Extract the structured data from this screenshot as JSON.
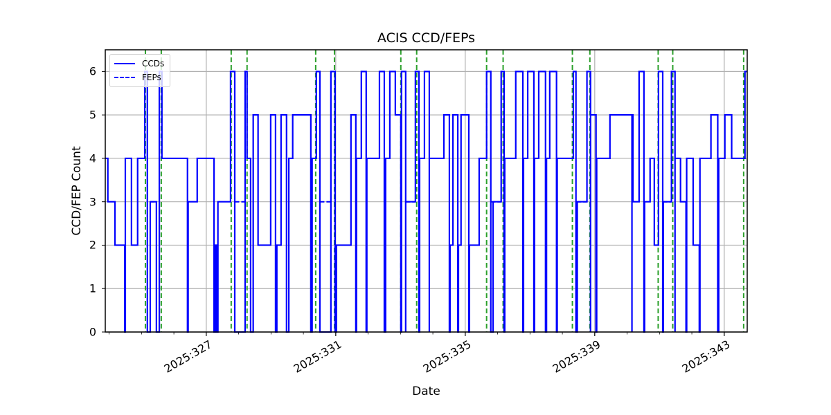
{
  "chart_data": {
    "type": "line",
    "title": "ACIS CCD/FEPs",
    "xlabel": "Date",
    "ylabel": "CCD/FEP Count",
    "xlim_day_of_year": [
      323.88,
      343.71
    ],
    "ylim": [
      0,
      6.5
    ],
    "grid": true,
    "legend_position": "upper left",
    "x_ticks": [
      {
        "day": 327,
        "label": "2025:327"
      },
      {
        "day": 331,
        "label": "2025:331"
      },
      {
        "day": 335,
        "label": "2025:335"
      },
      {
        "day": 339,
        "label": "2025:339"
      },
      {
        "day": 343,
        "label": "2025:343"
      }
    ],
    "y_ticks": [
      0,
      1,
      2,
      3,
      4,
      5,
      6
    ],
    "legend": [
      {
        "label": "CCDs",
        "style": "solid",
        "color": "#0000ff"
      },
      {
        "label": "FEPs",
        "style": "dashed",
        "color": "#0000ff"
      }
    ],
    "series": [
      {
        "name": "CCDs",
        "style": "steps-post",
        "color": "#0000ff",
        "points_day_value": [
          [
            323.88,
            4
          ],
          [
            323.96,
            3
          ],
          [
            324.18,
            2
          ],
          [
            324.48,
            0
          ],
          [
            324.5,
            4
          ],
          [
            324.69,
            2
          ],
          [
            324.88,
            4
          ],
          [
            325.1,
            6
          ],
          [
            325.18,
            0
          ],
          [
            325.27,
            3
          ],
          [
            325.46,
            0
          ],
          [
            325.55,
            6
          ],
          [
            325.63,
            4
          ],
          [
            326.42,
            0
          ],
          [
            326.44,
            3
          ],
          [
            326.72,
            4
          ],
          [
            327.24,
            0
          ],
          [
            327.28,
            2
          ],
          [
            327.32,
            0
          ],
          [
            327.36,
            3
          ],
          [
            327.75,
            6
          ],
          [
            327.88,
            0
          ],
          [
            328.2,
            6
          ],
          [
            328.26,
            4
          ],
          [
            328.37,
            0
          ],
          [
            328.45,
            5
          ],
          [
            328.6,
            2
          ],
          [
            328.99,
            5
          ],
          [
            329.14,
            0
          ],
          [
            329.18,
            2
          ],
          [
            329.31,
            5
          ],
          [
            329.48,
            0
          ],
          [
            329.55,
            4
          ],
          [
            329.67,
            5
          ],
          [
            330.23,
            0
          ],
          [
            330.27,
            4
          ],
          [
            330.4,
            6
          ],
          [
            330.51,
            0
          ],
          [
            330.85,
            6
          ],
          [
            330.98,
            0
          ],
          [
            331.02,
            2
          ],
          [
            331.47,
            5
          ],
          [
            331.62,
            0
          ],
          [
            331.64,
            4
          ],
          [
            331.79,
            6
          ],
          [
            331.94,
            0
          ],
          [
            331.96,
            4
          ],
          [
            332.35,
            6
          ],
          [
            332.5,
            0
          ],
          [
            332.54,
            4
          ],
          [
            332.67,
            6
          ],
          [
            332.84,
            5
          ],
          [
            333.01,
            0
          ],
          [
            333.03,
            6
          ],
          [
            333.16,
            0
          ],
          [
            333.16,
            3
          ],
          [
            333.46,
            6
          ],
          [
            333.57,
            0
          ],
          [
            333.59,
            4
          ],
          [
            333.74,
            6
          ],
          [
            333.89,
            0
          ],
          [
            333.89,
            4
          ],
          [
            334.34,
            5
          ],
          [
            334.51,
            0
          ],
          [
            334.53,
            2
          ],
          [
            334.62,
            5
          ],
          [
            334.77,
            0
          ],
          [
            334.79,
            2
          ],
          [
            334.87,
            5
          ],
          [
            335.11,
            0
          ],
          [
            335.13,
            2
          ],
          [
            335.43,
            4
          ],
          [
            335.66,
            6
          ],
          [
            335.79,
            0
          ],
          [
            335.86,
            3
          ],
          [
            336.11,
            6
          ],
          [
            336.2,
            0
          ],
          [
            336.22,
            4
          ],
          [
            336.56,
            6
          ],
          [
            336.78,
            0
          ],
          [
            336.8,
            4
          ],
          [
            336.93,
            6
          ],
          [
            337.12,
            0
          ],
          [
            337.14,
            4
          ],
          [
            337.27,
            6
          ],
          [
            337.48,
            0
          ],
          [
            337.51,
            4
          ],
          [
            337.61,
            6
          ],
          [
            337.82,
            0
          ],
          [
            337.84,
            4
          ],
          [
            338.34,
            6
          ],
          [
            338.42,
            0
          ],
          [
            338.46,
            3
          ],
          [
            338.76,
            6
          ],
          [
            338.87,
            0
          ],
          [
            338.87,
            5
          ],
          [
            339.04,
            0
          ],
          [
            339.06,
            4
          ],
          [
            339.47,
            5
          ],
          [
            340.15,
            0
          ],
          [
            340.15,
            5
          ],
          [
            340.18,
            3
          ],
          [
            340.37,
            6
          ],
          [
            340.52,
            0
          ],
          [
            340.54,
            3
          ],
          [
            340.71,
            4
          ],
          [
            340.84,
            2
          ],
          [
            340.97,
            6
          ],
          [
            341.1,
            0
          ],
          [
            341.12,
            3
          ],
          [
            341.37,
            6
          ],
          [
            341.48,
            0
          ],
          [
            341.48,
            4
          ],
          [
            341.65,
            3
          ],
          [
            341.82,
            0
          ],
          [
            341.84,
            4
          ],
          [
            342.04,
            2
          ],
          [
            342.23,
            0
          ],
          [
            342.25,
            4
          ],
          [
            342.59,
            5
          ],
          [
            342.8,
            0
          ],
          [
            342.83,
            4
          ],
          [
            343.02,
            5
          ],
          [
            343.23,
            4
          ],
          [
            343.64,
            6
          ],
          [
            343.71,
            6
          ]
        ]
      },
      {
        "name": "FEPs",
        "style": "steps-post dashed",
        "color": "#0000ff",
        "note": "Overlaps CCDs except where FEPs=3 while CCDs=0 (dashed segments at value 3)"
      }
    ],
    "vertical_markers": {
      "color": "#2ca02c",
      "style": "dashed",
      "days": [
        325.12,
        325.61,
        327.77,
        328.26,
        330.38,
        330.96,
        333.01,
        333.5,
        335.66,
        336.17,
        338.31,
        338.85,
        340.96,
        341.41,
        343.6
      ]
    },
    "feps_gap_segments_day_value": [
      [
        325.27,
        325.46,
        3
      ],
      [
        327.89,
        328.19,
        3
      ],
      [
        330.52,
        330.84,
        3
      ],
      [
        333.17,
        333.45,
        3
      ],
      [
        335.8,
        336.1,
        3
      ],
      [
        338.45,
        338.75,
        3
      ],
      [
        341.11,
        341.36,
        3
      ]
    ]
  }
}
